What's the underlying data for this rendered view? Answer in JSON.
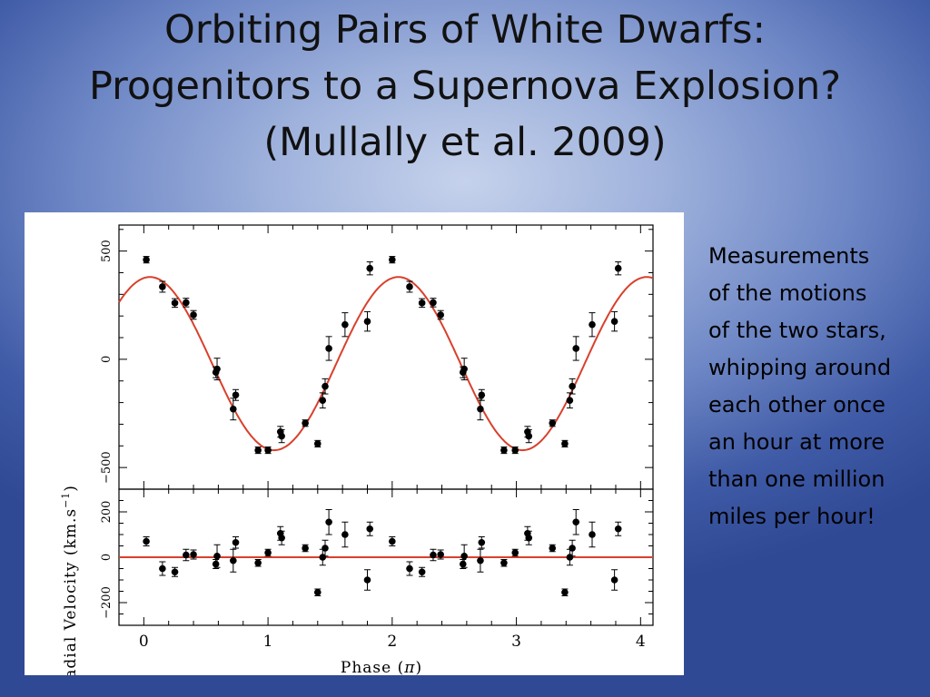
{
  "slide": {
    "title_lines": [
      "Orbiting Pairs of White Dwarfs:",
      "Progenitors to a Supernova Explosion?",
      "(Mullally et al. 2009)"
    ],
    "caption_lines": [
      "Measurements",
      "of the motions",
      "of the two stars,",
      "whipping around",
      "each other once",
      "an hour at more",
      "than one million",
      "miles per hour!"
    ]
  },
  "chart_data": [
    {
      "type": "scatter",
      "panel": "top",
      "ylabel": "Radial Velocity (km.s",
      "ylabel_sup": "−1",
      "ylabel_close": ")",
      "xlim": [
        -0.2,
        4.1
      ],
      "ylim": [
        -600,
        620
      ],
      "yticks": [
        500,
        0,
        -500
      ],
      "ytick_labels": [
        "500",
        "0",
        "−500"
      ],
      "model": {
        "type": "sinusoid",
        "amplitude": 400,
        "offset": -20,
        "period": 2,
        "peak_phase": 0.05,
        "color": "#d9402c"
      },
      "points": [
        {
          "x": 0.02,
          "y": 460,
          "err": 15
        },
        {
          "x": 0.15,
          "y": 335,
          "err": 25
        },
        {
          "x": 0.25,
          "y": 260,
          "err": 20
        },
        {
          "x": 0.34,
          "y": 262,
          "err": 20
        },
        {
          "x": 0.4,
          "y": 205,
          "err": 20
        },
        {
          "x": 0.58,
          "y": -60,
          "err": 25
        },
        {
          "x": 0.59,
          "y": -45,
          "err": 50
        },
        {
          "x": 0.72,
          "y": -230,
          "err": 50
        },
        {
          "x": 0.74,
          "y": -165,
          "err": 25
        },
        {
          "x": 0.92,
          "y": -420,
          "err": 15
        },
        {
          "x": 1.0,
          "y": -420,
          "err": 15
        },
        {
          "x": 1.1,
          "y": -335,
          "err": 25
        },
        {
          "x": 1.11,
          "y": -355,
          "err": 30
        },
        {
          "x": 1.3,
          "y": -295,
          "err": 15
        },
        {
          "x": 1.4,
          "y": -390,
          "err": 15
        },
        {
          "x": 1.44,
          "y": -190,
          "err": 35
        },
        {
          "x": 1.46,
          "y": -125,
          "err": 35
        },
        {
          "x": 1.49,
          "y": 50,
          "err": 55
        },
        {
          "x": 1.62,
          "y": 160,
          "err": 55
        },
        {
          "x": 1.8,
          "y": 175,
          "err": 45
        },
        {
          "x": 1.82,
          "y": 420,
          "err": 30
        },
        {
          "x": 2.0,
          "y": 460,
          "err": 15
        },
        {
          "x": 2.14,
          "y": 335,
          "err": 25
        },
        {
          "x": 2.24,
          "y": 260,
          "err": 20
        },
        {
          "x": 2.33,
          "y": 262,
          "err": 20
        },
        {
          "x": 2.39,
          "y": 205,
          "err": 20
        },
        {
          "x": 2.57,
          "y": -60,
          "err": 25
        },
        {
          "x": 2.58,
          "y": -45,
          "err": 50
        },
        {
          "x": 2.71,
          "y": -230,
          "err": 50
        },
        {
          "x": 2.72,
          "y": -165,
          "err": 25
        },
        {
          "x": 2.9,
          "y": -420,
          "err": 15
        },
        {
          "x": 2.99,
          "y": -420,
          "err": 15
        },
        {
          "x": 3.09,
          "y": -335,
          "err": 25
        },
        {
          "x": 3.1,
          "y": -355,
          "err": 30
        },
        {
          "x": 3.29,
          "y": -295,
          "err": 15
        },
        {
          "x": 3.39,
          "y": -390,
          "err": 15
        },
        {
          "x": 3.43,
          "y": -190,
          "err": 35
        },
        {
          "x": 3.45,
          "y": -125,
          "err": 35
        },
        {
          "x": 3.48,
          "y": 50,
          "err": 55
        },
        {
          "x": 3.61,
          "y": 160,
          "err": 55
        },
        {
          "x": 3.79,
          "y": 175,
          "err": 45
        },
        {
          "x": 3.82,
          "y": 420,
          "err": 30
        }
      ]
    },
    {
      "type": "scatter",
      "panel": "bottom",
      "xlabel": "Phase (",
      "xlabel_symbol": "π",
      "xlabel_close": ")",
      "xlim": [
        -0.2,
        4.1
      ],
      "ylim": [
        -300,
        300
      ],
      "xticks": [
        0,
        1,
        2,
        3,
        4
      ],
      "xtick_labels": [
        "0",
        "1",
        "2",
        "3",
        "4"
      ],
      "yticks": [
        200,
        0,
        -200
      ],
      "ytick_labels": [
        "200",
        "0",
        "−200"
      ],
      "zero_line": {
        "y": 0,
        "color": "#d9402c"
      },
      "points": [
        {
          "x": 0.02,
          "y": 70,
          "err": 20
        },
        {
          "x": 0.15,
          "y": -50,
          "err": 30
        },
        {
          "x": 0.25,
          "y": -65,
          "err": 20
        },
        {
          "x": 0.34,
          "y": 10,
          "err": 25
        },
        {
          "x": 0.4,
          "y": 12,
          "err": 20
        },
        {
          "x": 0.58,
          "y": -30,
          "err": 20
        },
        {
          "x": 0.59,
          "y": 5,
          "err": 50
        },
        {
          "x": 0.72,
          "y": -15,
          "err": 50
        },
        {
          "x": 0.74,
          "y": 65,
          "err": 25
        },
        {
          "x": 0.92,
          "y": -25,
          "err": 15
        },
        {
          "x": 1.0,
          "y": 20,
          "err": 15
        },
        {
          "x": 1.1,
          "y": 105,
          "err": 30
        },
        {
          "x": 1.11,
          "y": 85,
          "err": 30
        },
        {
          "x": 1.3,
          "y": 40,
          "err": 15
        },
        {
          "x": 1.4,
          "y": -155,
          "err": 15
        },
        {
          "x": 1.44,
          "y": 0,
          "err": 35
        },
        {
          "x": 1.46,
          "y": 40,
          "err": 35
        },
        {
          "x": 1.49,
          "y": 155,
          "err": 55
        },
        {
          "x": 1.62,
          "y": 100,
          "err": 55
        },
        {
          "x": 1.8,
          "y": -100,
          "err": 45
        },
        {
          "x": 1.82,
          "y": 125,
          "err": 30
        },
        {
          "x": 2.0,
          "y": 70,
          "err": 20
        },
        {
          "x": 2.14,
          "y": -50,
          "err": 30
        },
        {
          "x": 2.24,
          "y": -65,
          "err": 20
        },
        {
          "x": 2.33,
          "y": 10,
          "err": 25
        },
        {
          "x": 2.39,
          "y": 12,
          "err": 20
        },
        {
          "x": 2.57,
          "y": -30,
          "err": 20
        },
        {
          "x": 2.58,
          "y": 5,
          "err": 50
        },
        {
          "x": 2.71,
          "y": -15,
          "err": 50
        },
        {
          "x": 2.72,
          "y": 65,
          "err": 25
        },
        {
          "x": 2.9,
          "y": -25,
          "err": 15
        },
        {
          "x": 2.99,
          "y": 20,
          "err": 15
        },
        {
          "x": 3.09,
          "y": 105,
          "err": 30
        },
        {
          "x": 3.1,
          "y": 85,
          "err": 30
        },
        {
          "x": 3.29,
          "y": 40,
          "err": 15
        },
        {
          "x": 3.39,
          "y": -155,
          "err": 15
        },
        {
          "x": 3.43,
          "y": 0,
          "err": 35
        },
        {
          "x": 3.45,
          "y": 40,
          "err": 35
        },
        {
          "x": 3.48,
          "y": 155,
          "err": 55
        },
        {
          "x": 3.61,
          "y": 100,
          "err": 55
        },
        {
          "x": 3.79,
          "y": -100,
          "err": 45
        },
        {
          "x": 3.82,
          "y": 125,
          "err": 30
        }
      ]
    }
  ]
}
